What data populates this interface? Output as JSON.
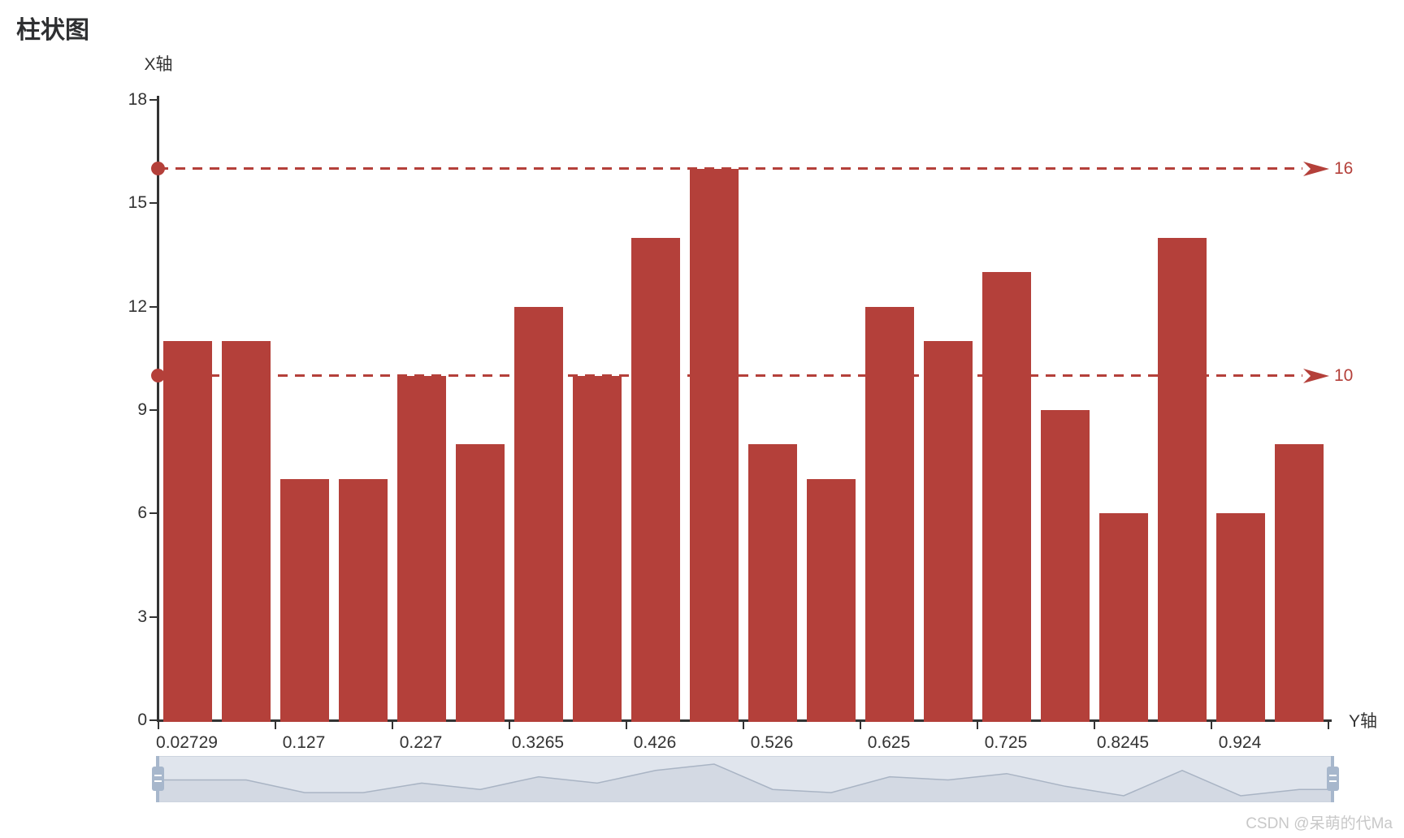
{
  "watermark": "CSDN @呆萌的代Ma",
  "colors": {
    "bar": "#b4403a",
    "markline": "#b4403a",
    "axis": "#333333",
    "label_text": "#333333",
    "title_text": "#2f3032",
    "watermark_text": "#c8c8c8",
    "slider_bg": "#e0e5ed",
    "slider_border": "#ccd4df",
    "slider_area": "#d3d9e3",
    "slider_line": "#a9b4c4",
    "slider_handle": "#a7b7cc"
  },
  "chart_data": {
    "type": "bar",
    "title": "柱状图",
    "y_axis_name": "X轴",
    "x_axis_name": "Y轴",
    "x_tick_labels": [
      "0.02729",
      "0.127",
      "0.227",
      "0.3265",
      "0.426",
      "0.526",
      "0.625",
      "0.725",
      "0.8245",
      "0.924"
    ],
    "values": [
      11,
      11,
      7,
      7,
      10,
      8,
      12,
      10,
      14,
      16,
      8,
      7,
      12,
      11,
      13,
      9,
      6,
      14,
      6,
      8
    ],
    "y_ticks": [
      0,
      3,
      6,
      9,
      12,
      15,
      18
    ],
    "ylim": [
      0,
      18
    ],
    "grid_lines": false,
    "legend": null,
    "marklines": [
      {
        "value": 16,
        "label": "16"
      },
      {
        "value": 10,
        "label": "10"
      }
    ],
    "datazoom": {
      "visible": true,
      "range_percent": [
        0,
        100
      ]
    }
  }
}
